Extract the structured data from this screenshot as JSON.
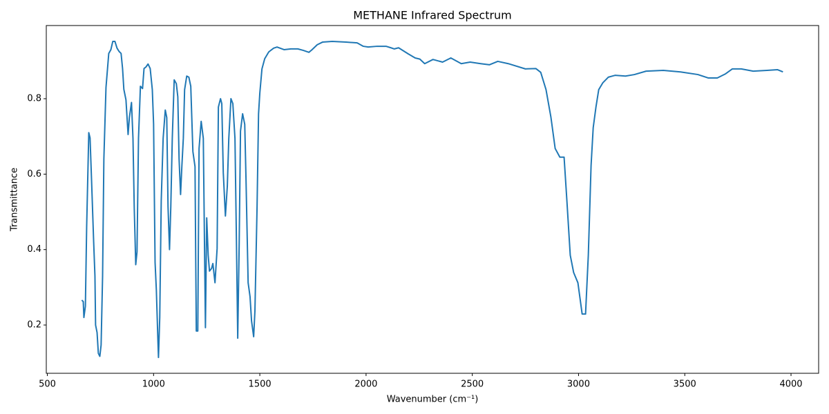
{
  "chart_data": {
    "type": "line",
    "title": "METHANE Infrared Spectrum",
    "x_label": "Wavenumber (cm⁻¹)",
    "y_label": "Transmittance",
    "x": [
      662,
      669,
      672,
      679,
      685,
      695,
      701,
      708,
      718,
      724,
      727,
      734,
      740,
      747,
      753,
      760,
      766,
      776,
      789,
      799,
      808,
      818,
      828,
      838,
      847,
      854,
      860,
      870,
      880,
      886,
      896,
      903,
      909,
      916,
      922,
      929,
      938,
      948,
      955,
      964,
      974,
      984,
      994,
      1000,
      1007,
      1013,
      1020,
      1023,
      1029,
      1036,
      1045,
      1055,
      1062,
      1068,
      1075,
      1081,
      1088,
      1097,
      1107,
      1114,
      1120,
      1127,
      1133,
      1140,
      1146,
      1156,
      1166,
      1175,
      1185,
      1195,
      1201,
      1208,
      1214,
      1224,
      1234,
      1244,
      1250,
      1257,
      1263,
      1273,
      1279,
      1289,
      1299,
      1305,
      1315,
      1321,
      1328,
      1338,
      1347,
      1354,
      1364,
      1373,
      1383,
      1390,
      1396,
      1403,
      1409,
      1419,
      1429,
      1435,
      1445,
      1454,
      1461,
      1471,
      1477,
      1487,
      1494,
      1500,
      1510,
      1523,
      1542,
      1565,
      1581,
      1614,
      1646,
      1679,
      1705,
      1731,
      1744,
      1770,
      1795,
      1841,
      1906,
      1958,
      1987,
      2010,
      2052,
      2094,
      2117,
      2133,
      2153,
      2198,
      2231,
      2253,
      2276,
      2315,
      2360,
      2399,
      2448,
      2490,
      2539,
      2581,
      2620,
      2669,
      2750,
      2799,
      2822,
      2847,
      2870,
      2890,
      2912,
      2932,
      2945,
      2961,
      2977,
      2997,
      3017,
      3033,
      3046,
      3059,
      3069,
      3082,
      3095,
      3114,
      3140,
      3172,
      3221,
      3263,
      3318,
      3399,
      3480,
      3562,
      3610,
      3653,
      3692,
      3724,
      3766,
      3822,
      3887,
      3936,
      3962
    ],
    "series": [
      {
        "name": "METHANE",
        "color": "#1f77b4",
        "values": [
          0.266,
          0.262,
          0.22,
          0.25,
          0.46,
          0.71,
          0.696,
          0.585,
          0.42,
          0.33,
          0.2,
          0.18,
          0.125,
          0.117,
          0.147,
          0.33,
          0.64,
          0.83,
          0.92,
          0.93,
          0.952,
          0.952,
          0.934,
          0.925,
          0.92,
          0.88,
          0.825,
          0.797,
          0.705,
          0.75,
          0.79,
          0.695,
          0.51,
          0.36,
          0.394,
          0.695,
          0.833,
          0.827,
          0.88,
          0.884,
          0.892,
          0.88,
          0.824,
          0.733,
          0.366,
          0.293,
          0.165,
          0.114,
          0.22,
          0.53,
          0.695,
          0.77,
          0.75,
          0.513,
          0.4,
          0.513,
          0.695,
          0.85,
          0.84,
          0.805,
          0.64,
          0.546,
          0.62,
          0.695,
          0.824,
          0.86,
          0.857,
          0.833,
          0.66,
          0.62,
          0.184,
          0.184,
          0.668,
          0.74,
          0.695,
          0.193,
          0.484,
          0.385,
          0.343,
          0.35,
          0.363,
          0.312,
          0.403,
          0.778,
          0.8,
          0.787,
          0.604,
          0.489,
          0.568,
          0.695,
          0.8,
          0.787,
          0.695,
          0.42,
          0.165,
          0.42,
          0.714,
          0.76,
          0.732,
          0.586,
          0.312,
          0.275,
          0.211,
          0.169,
          0.238,
          0.513,
          0.76,
          0.815,
          0.879,
          0.906,
          0.924,
          0.934,
          0.937,
          0.93,
          0.932,
          0.932,
          0.928,
          0.923,
          0.929,
          0.943,
          0.95,
          0.952,
          0.95,
          0.948,
          0.939,
          0.937,
          0.939,
          0.939,
          0.935,
          0.932,
          0.935,
          0.919,
          0.908,
          0.905,
          0.893,
          0.904,
          0.897,
          0.908,
          0.893,
          0.897,
          0.893,
          0.89,
          0.899,
          0.893,
          0.879,
          0.88,
          0.87,
          0.824,
          0.751,
          0.668,
          0.645,
          0.645,
          0.531,
          0.385,
          0.339,
          0.312,
          0.229,
          0.229,
          0.385,
          0.623,
          0.723,
          0.778,
          0.824,
          0.842,
          0.857,
          0.862,
          0.86,
          0.864,
          0.873,
          0.875,
          0.871,
          0.864,
          0.855,
          0.855,
          0.866,
          0.879,
          0.879,
          0.873,
          0.875,
          0.877,
          0.871
        ]
      }
    ],
    "xlim": [
      495,
      4130
    ],
    "ylim": [
      0.072,
      0.994
    ],
    "xticks": [
      500,
      1000,
      1500,
      2000,
      2500,
      3000,
      3500,
      4000
    ],
    "yticks": [
      0.2,
      0.4,
      0.6,
      0.8
    ]
  }
}
